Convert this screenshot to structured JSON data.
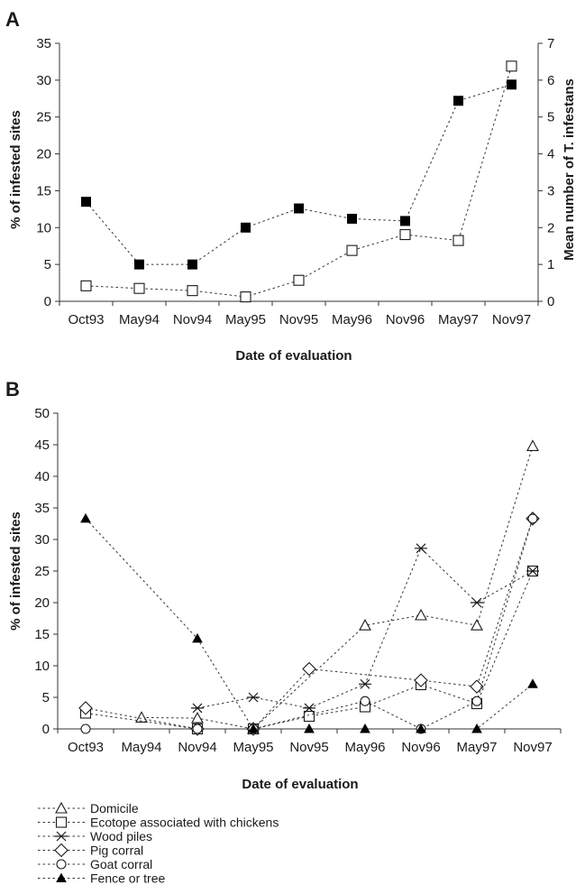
{
  "chart_data": [
    {
      "panel": "A",
      "type": "line",
      "categories": [
        "Oct93",
        "May94",
        "Nov94",
        "May95",
        "Nov95",
        "May96",
        "Nov96",
        "May97",
        "Nov97"
      ],
      "xlabel": "Date of evaluation",
      "ylabel": "% of infested sites",
      "y2label": "Mean number of T. infestans",
      "ylim": [
        0,
        35
      ],
      "y2lim": [
        0,
        7
      ],
      "yticks": [
        0,
        5,
        10,
        15,
        20,
        25,
        30,
        35
      ],
      "y2ticks": [
        0,
        1,
        2,
        3,
        4,
        5,
        6,
        7
      ],
      "series": [
        {
          "marker": "filled-square",
          "axis": "left",
          "values": [
            13.5,
            5.0,
            5.0,
            10.0,
            12.6,
            11.2,
            10.9,
            27.2,
            29.4
          ]
        },
        {
          "marker": "open-square",
          "axis": "right",
          "values": [
            0.42,
            0.35,
            0.29,
            0.12,
            0.57,
            1.38,
            1.81,
            1.65,
            6.38
          ]
        }
      ]
    },
    {
      "panel": "B",
      "type": "line",
      "categories": [
        "Oct93",
        "May94",
        "Nov94",
        "May95",
        "Nov95",
        "May96",
        "Nov96",
        "May97",
        "Nov97"
      ],
      "xlabel": "Date of evaluation",
      "ylabel": "% of infested sites",
      "ylim": [
        0,
        50
      ],
      "yticks": [
        0,
        5,
        10,
        15,
        20,
        25,
        30,
        35,
        40,
        45,
        50
      ],
      "legend_position": "bottom",
      "series": [
        {
          "name": "Domicile",
          "marker": "open-triangle",
          "values": [
            null,
            1.8,
            1.7,
            0,
            null,
            16.4,
            18.0,
            16.4,
            44.8
          ]
        },
        {
          "name": "Ecotope associated with chickens",
          "marker": "open-square",
          "values": [
            2.5,
            null,
            0,
            0,
            2.0,
            3.5,
            7.0,
            4.0,
            25.0
          ]
        },
        {
          "name": "Wood piles",
          "marker": "star",
          "values": [
            null,
            null,
            3.3,
            5.0,
            3.3,
            7.1,
            28.6,
            20.0,
            25.0
          ]
        },
        {
          "name": "Pig corral",
          "marker": "open-diamond",
          "values": [
            3.3,
            null,
            0,
            0,
            9.5,
            null,
            7.7,
            6.7,
            33.3
          ]
        },
        {
          "name": "Goat corral",
          "marker": "open-circle",
          "values": [
            0,
            null,
            0,
            0,
            null,
            4.4,
            0,
            4.4,
            33.3
          ]
        },
        {
          "name": "Fence or tree",
          "marker": "filled-triangle",
          "values": [
            33.3,
            null,
            14.3,
            0,
            0,
            0,
            0,
            0,
            7.1
          ]
        }
      ]
    }
  ]
}
